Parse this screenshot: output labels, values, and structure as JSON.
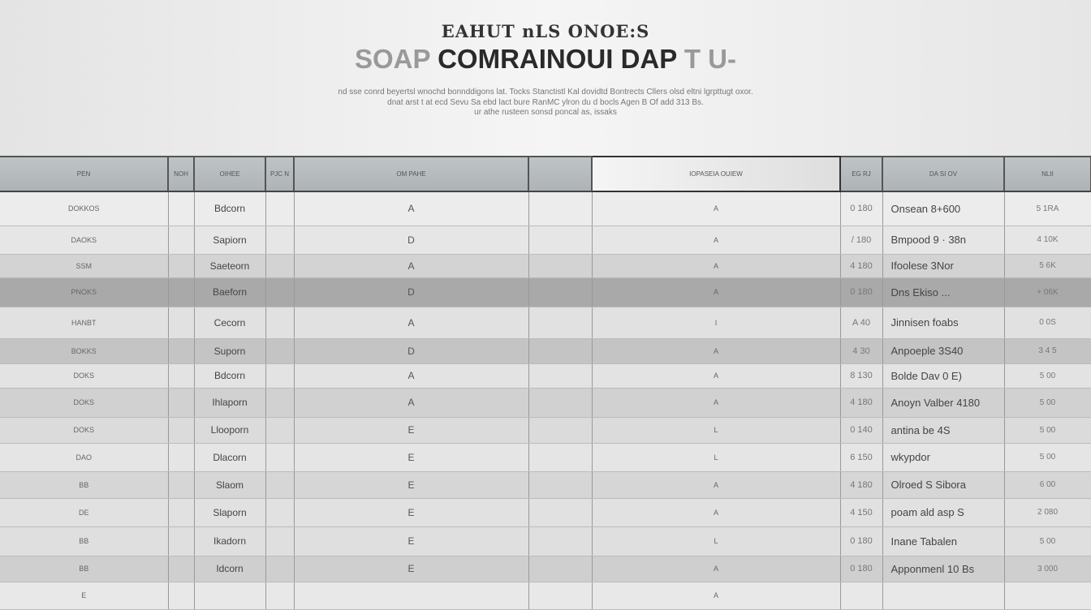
{
  "header": {
    "supertitle": "EAHUT nLS  ONOE:S",
    "title_ghost": "SOAP",
    "title": "COMRAINOUI DAP",
    "title_tail": "T U-",
    "desc_lines": [
      "nd sse conrd beyertsl wnochd bonnddigons lat. Tocks Stanctistl Kal dovidtd Bontrects Cllers olsd eltni lgrpttugt oxor.",
      "dnat arst t at ecd Sevu Sa ebd lact bure RanMC ylron du d bocls Agen B Of add 313 Bs.",
      "ur athe rusteen sonsd poncal as, issaks"
    ]
  },
  "table": {
    "columns": [
      "PEN",
      "NOH",
      "OIHEE",
      "PJC N",
      "OM    PAHE",
      "",
      "IOPASEIA   OUIEW",
      "EG RJ",
      "DA SI OV",
      "NLII"
    ],
    "rows": [
      [
        "DOKKOS",
        "",
        "Bdcorn",
        "",
        "A",
        "",
        "A",
        "0 180",
        "Onsean 8+600",
        "5 1RA"
      ],
      [
        "DAOKS",
        "",
        "Sapiorn",
        "",
        "D",
        "",
        "A",
        "/ 180",
        "Bmpood 9 · 38n",
        "4 10K"
      ],
      [
        "SSM",
        "",
        "Saeteorn",
        "",
        "A",
        "",
        "A",
        "4 180",
        "Ifoolese 3Nor",
        "5 6K"
      ],
      [
        "PNOKS",
        "",
        "Baeforn",
        "",
        "D",
        "",
        "A",
        "0 180",
        "Dns Ekiso ...",
        "+ 06K"
      ],
      [
        "HANBT",
        "",
        "Cecorn",
        "",
        "A",
        "",
        "I",
        "A 40",
        "Jinnisen foabs",
        "0 0S"
      ],
      [
        "BOKKS",
        "",
        "Suporn",
        "",
        "D",
        "",
        "A",
        "4 30",
        "Anpoeple 3S40",
        "3 4 5"
      ],
      [
        "DOKS",
        "",
        "Bdcorn",
        "",
        "A",
        "",
        "A",
        "8 130",
        "Bolde Dav 0 E)",
        "5 00"
      ],
      [
        "DOKS",
        "",
        "Ihlaporn",
        "",
        "A",
        "",
        "A",
        "4 180",
        "Anoyn Valber 4180",
        "5 00"
      ],
      [
        "DOKS",
        "",
        "Llooporn",
        "",
        "E",
        "",
        "L",
        "0 140",
        "antina be 4S",
        "5 00"
      ],
      [
        "DAO",
        "",
        "Dlacorn",
        "",
        "E",
        "",
        "L",
        "6 150",
        "wkypdor",
        "5 00"
      ],
      [
        "BB",
        "",
        "Slaom",
        "",
        "E",
        "",
        "A",
        "4 180",
        "Olroed S Sibora",
        "6 00"
      ],
      [
        "DE",
        "",
        "Slaporn",
        "",
        "E",
        "",
        "A",
        "4 150",
        "poam ald asp S",
        "2 080"
      ],
      [
        "BB",
        "",
        "Ikadorn",
        "",
        "E",
        "",
        "L",
        "0 180",
        "Inane Tabalen",
        "5 00"
      ],
      [
        "BB",
        "",
        "Idcorn",
        "",
        "E",
        "",
        "A",
        "0 180",
        "Apponmenl 10 Bs",
        "3 000"
      ],
      [
        "E",
        "",
        "",
        "",
        "",
        "",
        "A",
        "",
        "",
        ""
      ]
    ],
    "row_shades": [
      "#ececec",
      "#e6e6e6",
      "#d3d3d3",
      "#a9a9a9",
      "#e1e1e1",
      "#c4c4c4",
      "#e3e3e3",
      "#d1d1d1",
      "#dbdbdb",
      "#e5e5e5",
      "#d6d6d6",
      "#e1e1e1",
      "#dfdfdf",
      "#cfcfcf",
      "#e8e8e8"
    ]
  }
}
